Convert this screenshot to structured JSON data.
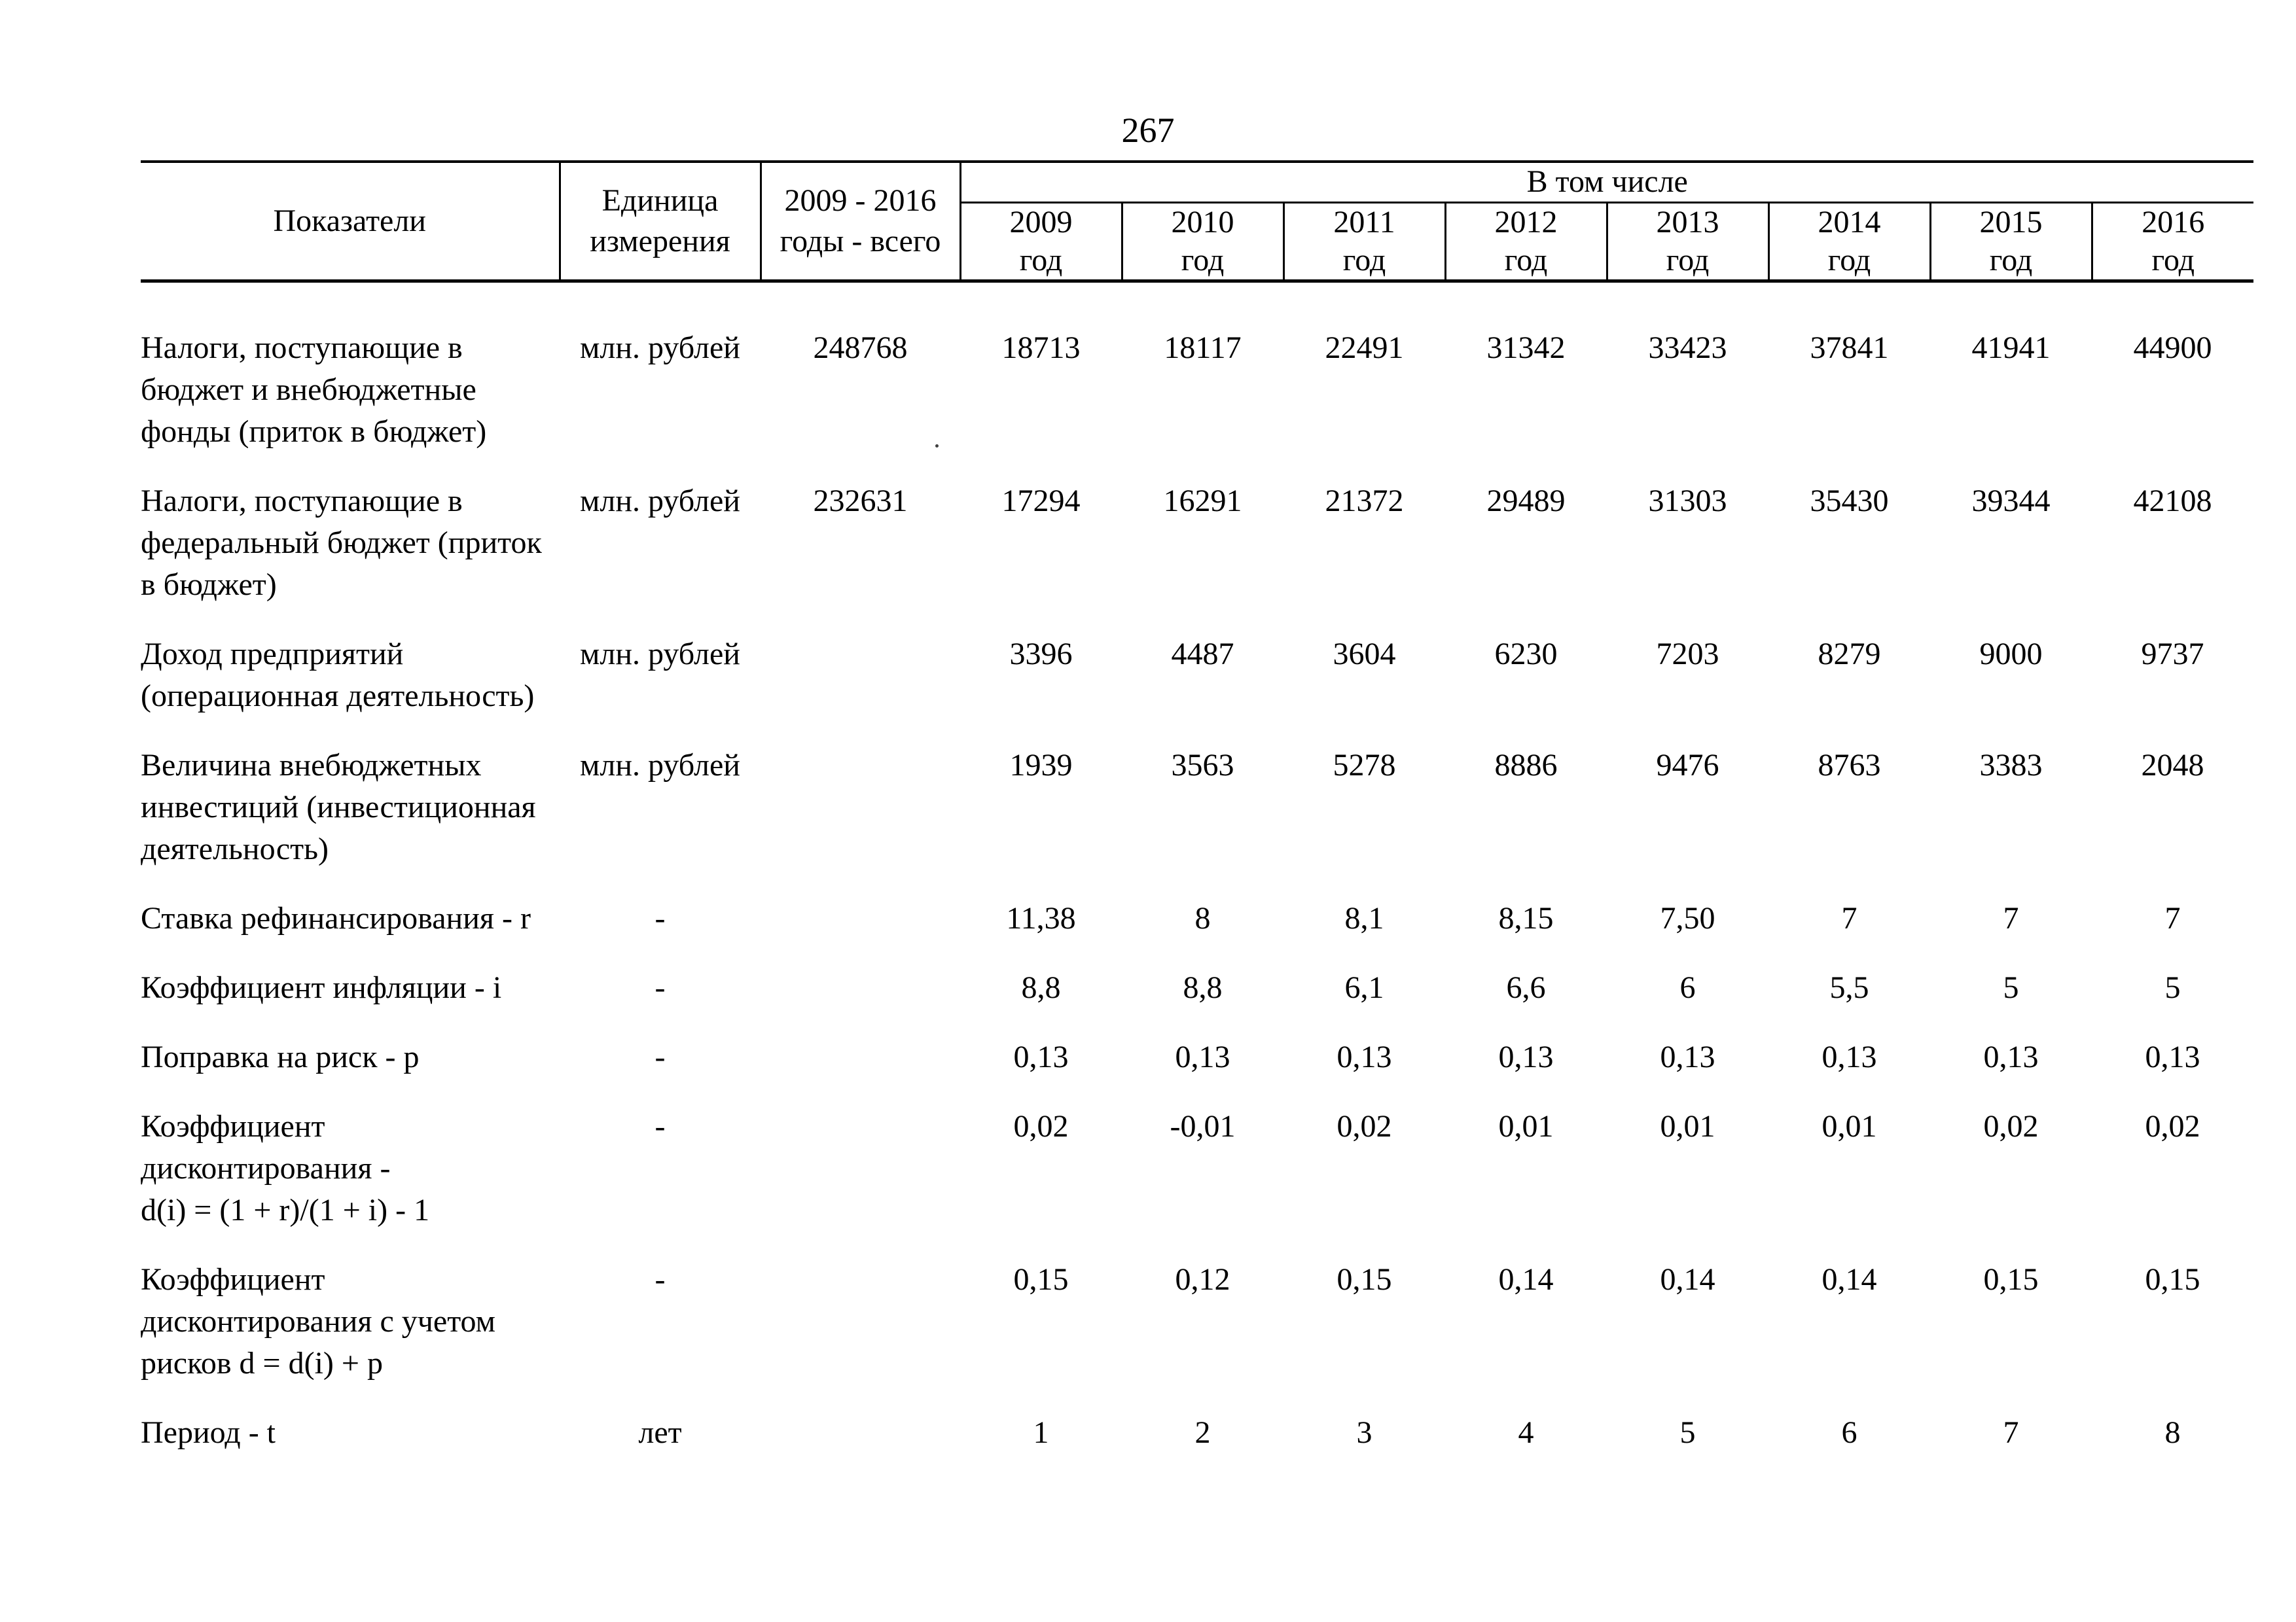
{
  "page": {
    "number": "267"
  },
  "table": {
    "header": {
      "indicators": "Показатели",
      "unit": "Единица\nизмерения",
      "total": "2009 - 2016\nгоды - всего",
      "including": "В том числе",
      "years": [
        "2009\nгод",
        "2010\nгод",
        "2011\nгод",
        "2012\nгод",
        "2013\nгод",
        "2014\nгод",
        "2015\nгод",
        "2016\nгод"
      ]
    },
    "rows": [
      [
        "Налоги, поступающие в\nбюджет и внебюджетные\nфонды (приток в бюджет)",
        "млн. рублей",
        "248768",
        "18713",
        "18117",
        "22491",
        "31342",
        "33423",
        "37841",
        "41941",
        "44900"
      ],
      [
        "Налоги, поступающие в\nфедеральный бюджет (приток\nв бюджет)",
        "млн. рублей",
        "232631",
        "17294",
        "16291",
        "21372",
        "29489",
        "31303",
        "35430",
        "39344",
        "42108"
      ],
      [
        "Доход предприятий\n(операционная деятельность)",
        "млн. рублей",
        "",
        "3396",
        "4487",
        "3604",
        "6230",
        "7203",
        "8279",
        "9000",
        "9737"
      ],
      [
        "Величина внебюджетных\nинвестиций (инвестиционная\nдеятельность)",
        "млн. рублей",
        "",
        "1939",
        "3563",
        "5278",
        "8886",
        "9476",
        "8763",
        "3383",
        "2048"
      ],
      [
        "Ставка рефинансирования - r",
        "-",
        "",
        "11,38",
        "8",
        "8,1",
        "8,15",
        "7,50",
        "7",
        "7",
        "7"
      ],
      [
        "Коэффициент инфляции - i",
        "-",
        "",
        "8,8",
        "8,8",
        "6,1",
        "6,6",
        "6",
        "5,5",
        "5",
        "5"
      ],
      [
        "Поправка на риск - p",
        "-",
        "",
        "0,13",
        "0,13",
        "0,13",
        "0,13",
        "0,13",
        "0,13",
        "0,13",
        "0,13"
      ],
      [
        "Коэффициент\nдисконтирования -\nd(i) = (1 + r)/(1 + i) - 1",
        "-",
        "",
        "0,02",
        "-0,01",
        "0,02",
        "0,01",
        "0,01",
        "0,01",
        "0,02",
        "0,02"
      ],
      [
        "Коэффициент\nдисконтирования с учетом\nрисков d = d(i) + p",
        "-",
        "",
        "0,15",
        "0,12",
        "0,15",
        "0,14",
        "0,14",
        "0,14",
        "0,15",
        "0,15"
      ],
      [
        "Период - t",
        "лет",
        "",
        "1",
        "2",
        "3",
        "4",
        "5",
        "6",
        "7",
        "8"
      ]
    ]
  }
}
